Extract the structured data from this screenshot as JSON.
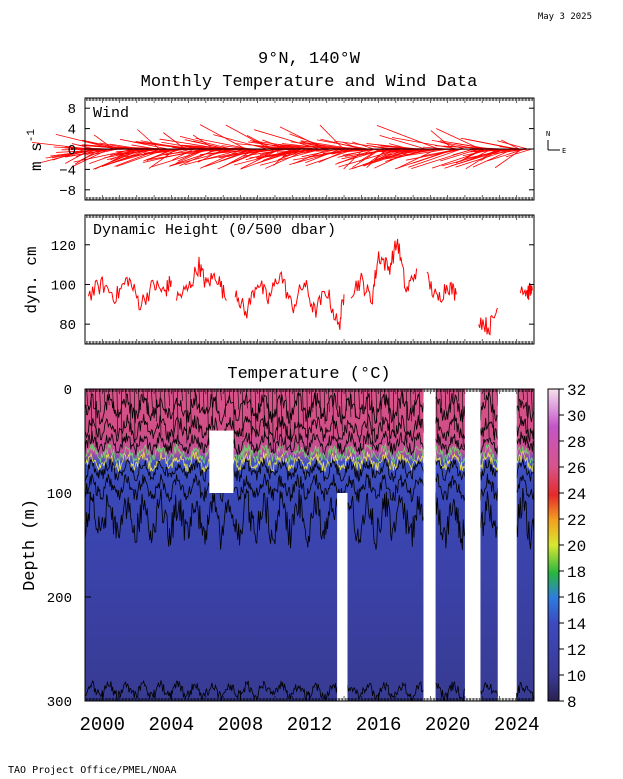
{
  "date_stamp": "May  3 2025",
  "title_line1": "9°N, 140°W",
  "title_line2": "Monthly Temperature and Wind Data",
  "footer": "TAO Project Office/PMEL/NOAA",
  "colors": {
    "wind": "#ff0000",
    "dynamic_height": "#ff0000",
    "warm": "#d8538a",
    "cool": "#3a4ab8",
    "deep": "#3d3f9a"
  },
  "chart_data": [
    {
      "type": "line",
      "title": "Wind",
      "ylabel": "m s-1",
      "ylabel_main": "m s",
      "ylabel_sup": "-1",
      "ylim": [
        -10,
        10
      ],
      "yticks": [
        "8",
        "4",
        "0",
        "−4",
        "−8"
      ],
      "compass_n": "N",
      "compass_e": "E",
      "x_range": [
        1999.0,
        2025.0
      ],
      "series": [
        {
          "u_mean": -5.0,
          "v_mean": -1.0,
          "gaps": [
            [
              2018.3,
              2018.6
            ],
            [
              2021.0,
              2021.4
            ]
          ]
        }
      ]
    },
    {
      "type": "line",
      "title": "Dynamic Height (0/500 dbar)",
      "ylabel": "dyn. cm",
      "ylim": [
        70,
        135
      ],
      "yticks": [
        "120",
        "100",
        "80"
      ],
      "x_range": [
        1999.0,
        2025.0
      ],
      "segments": [
        {
          "x": [
            1999.2,
            2000.0,
            2000.8,
            2001.5,
            2002.2,
            2003.0,
            2003.6,
            2004.0
          ],
          "y": [
            95,
            100,
            94,
            103,
            90,
            100,
            96,
            102
          ]
        },
        {
          "x": [
            2004.3,
            2005.0,
            2005.6,
            2006.0,
            2006.6,
            2007.2
          ],
          "y": [
            93,
            98,
            110,
            100,
            105,
            92
          ]
        },
        {
          "x": [
            2007.7,
            2008.3,
            2009.0,
            2009.6,
            2010.3,
            2011.0,
            2011.7,
            2012.3,
            2013.0,
            2013.7,
            2014.0
          ],
          "y": [
            98,
            85,
            102,
            92,
            106,
            88,
            101,
            86,
            97,
            78,
            95
          ]
        },
        {
          "x": [
            2014.4,
            2015.0,
            2015.6,
            2016.0,
            2016.6,
            2017.1,
            2017.6,
            2018.2
          ],
          "y": [
            97,
            102,
            92,
            115,
            108,
            122,
            96,
            108
          ]
        },
        {
          "x": [
            2018.8,
            2019.4,
            2020.0,
            2020.5
          ],
          "y": [
            103,
            92,
            100,
            95
          ]
        },
        {
          "x": [
            2021.8,
            2022.4,
            2022.9
          ],
          "y": [
            83,
            78,
            88
          ]
        },
        {
          "x": [
            2024.2,
            2024.6,
            2024.9
          ],
          "y": [
            100,
            96,
            97
          ]
        }
      ]
    },
    {
      "type": "heatmap",
      "title": "Temperature (°C)",
      "ylabel": "Depth (m)",
      "ylim": [
        300,
        0
      ],
      "yticks": [
        "0",
        "100",
        "200",
        "300"
      ],
      "xticks": [
        "2000",
        "2004",
        "2008",
        "2012",
        "2016",
        "2020",
        "2024"
      ],
      "xtick_values": [
        2000,
        2004,
        2008,
        2012,
        2016,
        2020,
        2024
      ],
      "x_range": [
        1999.0,
        2025.0
      ],
      "colorbar": {
        "ticks": [
          "32",
          "30",
          "28",
          "26",
          "24",
          "22",
          "20",
          "18",
          "16",
          "14",
          "12",
          "10",
          "8"
        ],
        "values": [
          32,
          30,
          28,
          26,
          24,
          22,
          20,
          18,
          16,
          14,
          12,
          10,
          8
        ],
        "range": [
          8,
          32
        ]
      },
      "mixed_layer_depth_m": 60,
      "thermocline_depth_m": 95,
      "gaps": [
        {
          "x0": 2006.2,
          "x1": 2007.6,
          "d0": 40,
          "d1": 100
        },
        {
          "x0": 2013.6,
          "x1": 2014.2,
          "d0": 100,
          "d1": 300
        },
        {
          "x0": 2018.6,
          "x1": 2019.3,
          "d0": 0,
          "d1": 300
        },
        {
          "x0": 2021.0,
          "x1": 2021.9,
          "d0": 0,
          "d1": 300
        },
        {
          "x0": 2022.9,
          "x1": 2024.0,
          "d0": 0,
          "d1": 300
        }
      ]
    }
  ]
}
